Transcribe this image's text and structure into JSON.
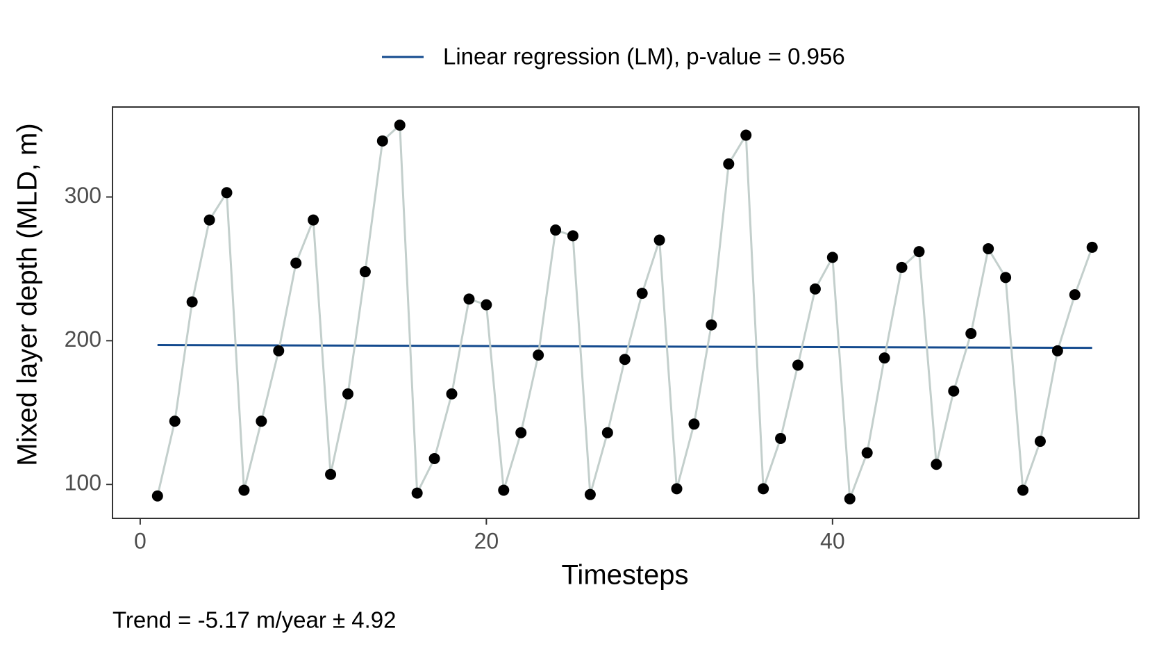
{
  "chart_data": {
    "type": "line",
    "x_label": "Timesteps",
    "y_label": "Mixed layer depth (MLD, m)",
    "annotation": "Trend = -5.17 m/year ± 4.92",
    "x": [
      1,
      2,
      3,
      4,
      5,
      6,
      7,
      8,
      9,
      10,
      11,
      12,
      13,
      14,
      15,
      16,
      17,
      18,
      19,
      20,
      21,
      22,
      23,
      24,
      25,
      26,
      27,
      28,
      29,
      30,
      31,
      32,
      33,
      34,
      35,
      36,
      37,
      38,
      39,
      40,
      41,
      42,
      43,
      44,
      45,
      46,
      47,
      48,
      49,
      50,
      51,
      52,
      53,
      54,
      55
    ],
    "series": [
      {
        "color": "#c3cfcc",
        "point_color": "#000000",
        "values": [
          92,
          144,
          227,
          284,
          303,
          96,
          144,
          193,
          254,
          284,
          107,
          163,
          248,
          339,
          350,
          94,
          118,
          163,
          229,
          225,
          96,
          136,
          190,
          277,
          273,
          93,
          136,
          187,
          233,
          270,
          97,
          142,
          211,
          323,
          343,
          97,
          132,
          183,
          236,
          258,
          90,
          122,
          188,
          251,
          262,
          114,
          165,
          205,
          264,
          244,
          96,
          130,
          193,
          232,
          265
        ]
      }
    ],
    "regression": {
      "name": "Linear regression (LM), p-value = 0.956",
      "color": "#134a8e",
      "x": [
        1,
        55
      ],
      "values": [
        197,
        195
      ]
    },
    "xlim": [
      -1.6,
      57.7
    ],
    "ylim": [
      76.4,
      362.6
    ],
    "xticks": [
      0,
      20,
      40
    ],
    "yticks": [
      100,
      200,
      300
    ]
  }
}
